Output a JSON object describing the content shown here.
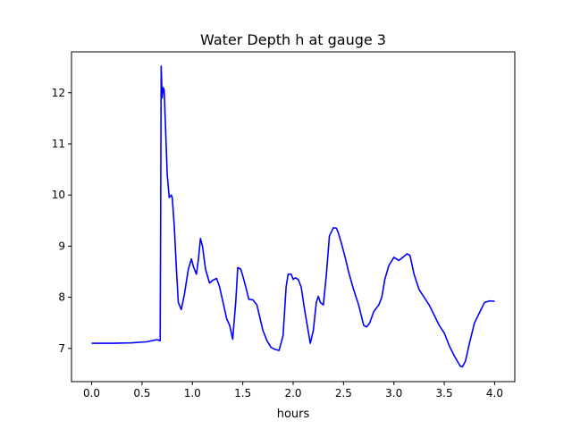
{
  "chart_data": {
    "type": "line",
    "title": "Water Depth h at gauge 3",
    "xlabel": "hours",
    "ylabel": "",
    "xlim": [
      -0.2,
      4.2
    ],
    "ylim": [
      6.35,
      12.8
    ],
    "xticks": [
      0.0,
      0.5,
      1.0,
      1.5,
      2.0,
      2.5,
      3.0,
      3.5,
      4.0
    ],
    "xtick_labels": [
      "0.0",
      "0.5",
      "1.0",
      "1.5",
      "2.0",
      "2.5",
      "3.0",
      "3.5",
      "4.0"
    ],
    "yticks": [
      7,
      8,
      9,
      10,
      11,
      12
    ],
    "ytick_labels": [
      "7",
      "8",
      "9",
      "10",
      "11",
      "12"
    ],
    "grid": false,
    "series": [
      {
        "color": "#0000ff",
        "x": [
          0.0,
          0.2,
          0.4,
          0.55,
          0.62,
          0.65,
          0.68,
          0.685,
          0.69,
          0.7,
          0.71,
          0.72,
          0.73,
          0.75,
          0.77,
          0.79,
          0.8,
          0.82,
          0.84,
          0.86,
          0.89,
          0.92,
          0.96,
          0.99,
          1.01,
          1.04,
          1.06,
          1.08,
          1.1,
          1.13,
          1.17,
          1.2,
          1.24,
          1.27,
          1.31,
          1.34,
          1.37,
          1.4,
          1.43,
          1.45,
          1.48,
          1.5,
          1.53,
          1.56,
          1.6,
          1.64,
          1.67,
          1.7,
          1.74,
          1.78,
          1.82,
          1.86,
          1.9,
          1.93,
          1.95,
          1.98,
          2.0,
          2.02,
          2.05,
          2.08,
          2.11,
          2.14,
          2.17,
          2.2,
          2.23,
          2.25,
          2.27,
          2.3,
          2.33,
          2.36,
          2.4,
          2.43,
          2.45,
          2.48,
          2.52,
          2.55,
          2.6,
          2.65,
          2.7,
          2.73,
          2.76,
          2.8,
          2.85,
          2.88,
          2.91,
          2.95,
          3.0,
          3.05,
          3.1,
          3.13,
          3.16,
          3.2,
          3.25,
          3.3,
          3.35,
          3.4,
          3.45,
          3.5,
          3.55,
          3.6,
          3.63,
          3.66,
          3.68,
          3.71,
          3.75,
          3.8,
          3.85,
          3.9,
          3.95,
          4.0
        ],
        "y": [
          7.1,
          7.1,
          7.11,
          7.13,
          7.16,
          7.17,
          7.15,
          9.5,
          12.52,
          11.9,
          12.1,
          12.05,
          11.5,
          10.4,
          9.95,
          10.0,
          9.95,
          9.4,
          8.6,
          7.9,
          7.76,
          8.05,
          8.55,
          8.75,
          8.6,
          8.45,
          8.75,
          9.15,
          9.0,
          8.55,
          8.28,
          8.33,
          8.37,
          8.2,
          7.85,
          7.58,
          7.45,
          7.18,
          7.9,
          8.58,
          8.55,
          8.42,
          8.2,
          7.96,
          7.95,
          7.85,
          7.6,
          7.35,
          7.15,
          7.02,
          6.98,
          6.96,
          7.25,
          8.2,
          8.45,
          8.45,
          8.35,
          8.38,
          8.35,
          8.2,
          7.8,
          7.45,
          7.1,
          7.35,
          7.9,
          8.02,
          7.9,
          7.85,
          8.45,
          9.2,
          9.36,
          9.35,
          9.25,
          9.05,
          8.75,
          8.5,
          8.15,
          7.85,
          7.45,
          7.42,
          7.5,
          7.72,
          7.85,
          8.0,
          8.35,
          8.62,
          8.78,
          8.72,
          8.8,
          8.85,
          8.82,
          8.45,
          8.15,
          8.0,
          7.85,
          7.65,
          7.45,
          7.3,
          7.05,
          6.85,
          6.75,
          6.65,
          6.64,
          6.75,
          7.1,
          7.5,
          7.7,
          7.9,
          7.93,
          7.92
        ]
      }
    ]
  }
}
